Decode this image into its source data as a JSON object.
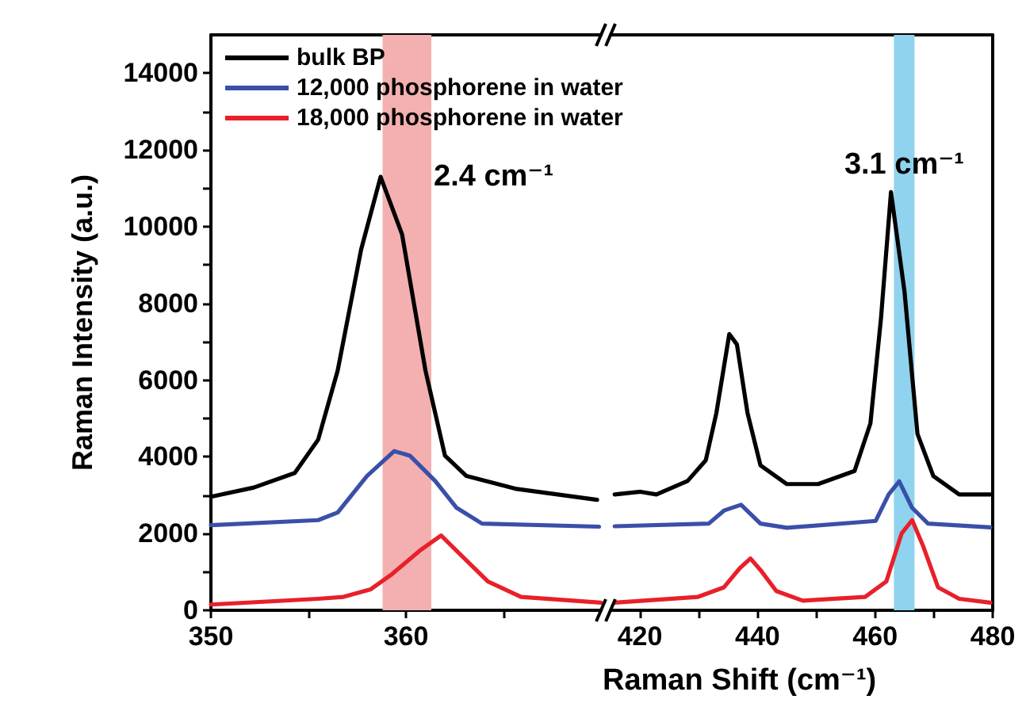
{
  "chart_data": [
    {
      "type": "line",
      "ylabel": "Raman Intensity (a.u.)",
      "xlabel": "Raman Shift (cm⁻¹)",
      "xlim": [
        350,
        370
      ],
      "xticks": [
        350,
        {
          "value": 355,
          "label": null
        },
        360,
        {
          "value": 365,
          "label": null
        }
      ],
      "ylim": [
        0,
        15000
      ],
      "yticks": [
        0,
        {
          "value": 1000,
          "label": null
        },
        2000,
        {
          "value": 3000,
          "label": null
        },
        4000,
        {
          "value": 5000,
          "label": null
        },
        6000,
        {
          "value": 7000,
          "label": null
        },
        8000,
        {
          "value": 9000,
          "label": null
        },
        10000,
        {
          "value": 11000,
          "label": null
        },
        12000,
        {
          "value": 13000,
          "label": null
        },
        14000
      ],
      "legend": "top left",
      "marker": "none",
      "bands": [
        {
          "axis": "x",
          "from": 358.8,
          "to": 361.3,
          "label": "2.4 cm⁻¹",
          "color": "#f4b0b0"
        }
      ],
      "series": [
        {
          "name": "bulk BP",
          "color": "#000000",
          "x": [
            350,
            352.2,
            354.3,
            355.5,
            356.5,
            357.7,
            358.7,
            359.8,
            361.0,
            362.0,
            363.1,
            365.6,
            369.8
          ],
          "values": [
            2960,
            3200,
            3580,
            4450,
            6250,
            9400,
            11300,
            9800,
            6250,
            4030,
            3500,
            3170,
            2880
          ]
        },
        {
          "name": "12,000 phosphorene in water",
          "color": "#3a4fa8",
          "x": [
            350,
            355.5,
            356.5,
            358.0,
            359.4,
            360.2,
            361.5,
            362.6,
            363.9,
            369.9
          ],
          "values": [
            2220,
            2350,
            2550,
            3500,
            4150,
            4030,
            3370,
            2670,
            2260,
            2180
          ]
        },
        {
          "name": "18,000 phosphorene in water",
          "color": "#e8202a",
          "x": [
            350,
            355.5,
            356.8,
            358.2,
            359.3,
            360.7,
            361.8,
            362.8,
            364.2,
            365.9,
            370
          ],
          "values": [
            150,
            300,
            350,
            550,
            950,
            1550,
            1950,
            1450,
            750,
            350,
            200
          ]
        }
      ]
    },
    {
      "type": "line",
      "xlim": [
        415,
        480
      ],
      "xticks": [
        420,
        {
          "value": 430,
          "label": null
        },
        440,
        {
          "value": 450,
          "label": null
        },
        460,
        {
          "value": 470,
          "label": null
        },
        480
      ],
      "ylim": [
        0,
        15000
      ],
      "tick_labels": "x",
      "marker": "none",
      "bands": [
        {
          "axis": "x",
          "from": 463.2,
          "to": 466.7,
          "label": "3.1 cm⁻¹",
          "color": "#8fd3ee"
        }
      ],
      "series": [
        {
          "color": "#000000",
          "x": [
            415.7,
            420.1,
            422.8,
            428.1,
            431.2,
            433.0,
            435.2,
            436.5,
            438.3,
            440.5,
            445.0,
            450.3,
            456.5,
            459.2,
            461.0,
            462.7,
            465.0,
            467.2,
            469.9,
            474.3,
            479.6
          ],
          "values": [
            3020,
            3090,
            3020,
            3370,
            3910,
            5140,
            7200,
            6930,
            5140,
            3780,
            3290,
            3290,
            3630,
            4870,
            7610,
            10900,
            8310,
            4600,
            3500,
            3020,
            3020
          ]
        },
        {
          "color": "#3a4fa8",
          "x": [
            415.7,
            431.7,
            434.3,
            437.2,
            440.5,
            445,
            460.1,
            462.3,
            464.1,
            466.3,
            469.0,
            479.6
          ],
          "values": [
            2190,
            2260,
            2600,
            2750,
            2260,
            2150,
            2330,
            3020,
            3360,
            2670,
            2260,
            2160
          ]
        },
        {
          "color": "#e8202a",
          "x": [
            415.7,
            429.9,
            434.3,
            437.0,
            438.8,
            440.5,
            443.2,
            447.7,
            458.3,
            461.9,
            464.5,
            466.3,
            468.1,
            470.7,
            474.3,
            479.6
          ],
          "values": [
            200,
            350,
            600,
            1100,
            1350,
            1050,
            500,
            250,
            350,
            750,
            2000,
            2350,
            1700,
            600,
            300,
            200
          ]
        }
      ]
    }
  ]
}
